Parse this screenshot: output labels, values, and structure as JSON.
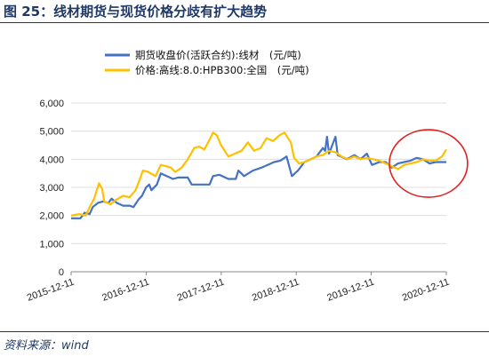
{
  "figure": {
    "title": "图 25：线材期货与现货价格分歧有扩大趋势",
    "source": "资料来源：wind"
  },
  "colors": {
    "title": "#1f3864",
    "futures_line": "#4472c4",
    "spot_line": "#ffc000",
    "highlight_circle": "#e02020"
  },
  "chart_data": {
    "type": "line",
    "title": "",
    "xlabel": "",
    "ylabel": "",
    "ylim": [
      0,
      6000
    ],
    "yticks": [
      0,
      1000,
      2000,
      3000,
      4000,
      5000,
      6000
    ],
    "ytick_labels": [
      "0",
      "1,000",
      "2,000",
      "3,000",
      "4,000",
      "5,000",
      "6,000"
    ],
    "xlim": [
      "2015-12-11",
      "2020-12-11"
    ],
    "xticks": [
      "2015-12-11",
      "2016-12-11",
      "2017-12-11",
      "2018-12-11",
      "2019-12-11",
      "2020-12-11"
    ],
    "grid": "horizontal",
    "legend": "top",
    "series": [
      {
        "name": "期货收盘价(活跃合约):线材　(元/吨)",
        "color": "#4472c4",
        "points": [
          [
            "2015-12-11",
            1900
          ],
          [
            "2016-01-25",
            1900
          ],
          [
            "2016-02-15",
            2100
          ],
          [
            "2016-03-10",
            2050
          ],
          [
            "2016-03-25",
            2300
          ],
          [
            "2016-04-20",
            2450
          ],
          [
            "2016-05-15",
            2500
          ],
          [
            "2016-06-10",
            2450
          ],
          [
            "2016-06-25",
            2600
          ],
          [
            "2016-07-20",
            2450
          ],
          [
            "2016-08-20",
            2350
          ],
          [
            "2016-09-20",
            2350
          ],
          [
            "2016-10-10",
            2300
          ],
          [
            "2016-11-01",
            2550
          ],
          [
            "2016-11-20",
            2700
          ],
          [
            "2016-12-10",
            3000
          ],
          [
            "2016-12-25",
            3100
          ],
          [
            "2017-01-05",
            2900
          ],
          [
            "2017-02-01",
            3100
          ],
          [
            "2017-02-20",
            3500
          ],
          [
            "2017-03-20",
            3400
          ],
          [
            "2017-04-20",
            3300
          ],
          [
            "2017-05-15",
            3350
          ],
          [
            "2017-07-01",
            3350
          ],
          [
            "2017-07-20",
            3100
          ],
          [
            "2017-09-01",
            3100
          ],
          [
            "2017-10-15",
            3100
          ],
          [
            "2017-11-01",
            3400
          ],
          [
            "2017-12-01",
            3450
          ],
          [
            "2018-01-15",
            3300
          ],
          [
            "2018-02-20",
            3300
          ],
          [
            "2018-03-05",
            3600
          ],
          [
            "2018-04-01",
            3400
          ],
          [
            "2018-05-15",
            3600
          ],
          [
            "2018-06-25",
            3700
          ],
          [
            "2018-07-25",
            3800
          ],
          [
            "2018-08-25",
            3900
          ],
          [
            "2018-09-25",
            3950
          ],
          [
            "2018-10-25",
            4100
          ],
          [
            "2018-11-20",
            3400
          ],
          [
            "2018-12-20",
            3600
          ],
          [
            "2019-01-20",
            3900
          ],
          [
            "2019-02-20",
            4000
          ],
          [
            "2019-03-20",
            4100
          ],
          [
            "2019-04-20",
            4400
          ],
          [
            "2019-05-01",
            4300
          ],
          [
            "2019-05-10",
            4800
          ],
          [
            "2019-05-20",
            4200
          ],
          [
            "2019-06-20",
            4800
          ],
          [
            "2019-07-01",
            4150
          ],
          [
            "2019-08-15",
            4000
          ],
          [
            "2019-09-20",
            4150
          ],
          [
            "2019-10-20",
            4000
          ],
          [
            "2019-11-20",
            4200
          ],
          [
            "2019-12-15",
            3800
          ],
          [
            "2020-01-20",
            3900
          ],
          [
            "2020-02-20",
            3900
          ],
          [
            "2020-03-20",
            3700
          ],
          [
            "2020-04-20",
            3850
          ],
          [
            "2020-05-20",
            3900
          ],
          [
            "2020-06-20",
            3950
          ],
          [
            "2020-07-20",
            4050
          ],
          [
            "2020-08-20",
            4000
          ],
          [
            "2020-09-20",
            3850
          ],
          [
            "2020-10-20",
            3900
          ],
          [
            "2020-11-20",
            3900
          ],
          [
            "2020-12-11",
            3900
          ]
        ]
      },
      {
        "name": "价格:高线:8.0:HPB300:全国　(元/吨)",
        "color": "#ffc000",
        "points": [
          [
            "2015-12-11",
            2000
          ],
          [
            "2016-01-20",
            2050
          ],
          [
            "2016-02-20",
            2000
          ],
          [
            "2016-03-10",
            2300
          ],
          [
            "2016-04-01",
            2600
          ],
          [
            "2016-04-25",
            3150
          ],
          [
            "2016-05-10",
            2950
          ],
          [
            "2016-05-20",
            2500
          ],
          [
            "2016-06-20",
            2400
          ],
          [
            "2016-07-15",
            2550
          ],
          [
            "2016-08-20",
            2700
          ],
          [
            "2016-09-20",
            2650
          ],
          [
            "2016-10-20",
            2900
          ],
          [
            "2016-11-10",
            3300
          ],
          [
            "2016-11-25",
            3600
          ],
          [
            "2016-12-20",
            3550
          ],
          [
            "2017-01-25",
            3400
          ],
          [
            "2017-02-20",
            3800
          ],
          [
            "2017-03-20",
            3750
          ],
          [
            "2017-04-10",
            3700
          ],
          [
            "2017-05-01",
            3550
          ],
          [
            "2017-06-01",
            3700
          ],
          [
            "2017-07-01",
            4000
          ],
          [
            "2017-08-01",
            4400
          ],
          [
            "2017-08-25",
            4450
          ],
          [
            "2017-09-20",
            4350
          ],
          [
            "2017-10-15",
            4700
          ],
          [
            "2017-11-01",
            4950
          ],
          [
            "2017-11-20",
            4850
          ],
          [
            "2017-12-10",
            4500
          ],
          [
            "2018-01-15",
            4100
          ],
          [
            "2018-02-15",
            4200
          ],
          [
            "2018-03-20",
            4300
          ],
          [
            "2018-04-20",
            4600
          ],
          [
            "2018-05-20",
            4300
          ],
          [
            "2018-06-20",
            4400
          ],
          [
            "2018-07-20",
            4750
          ],
          [
            "2018-08-20",
            4650
          ],
          [
            "2018-09-20",
            4850
          ],
          [
            "2018-10-15",
            4950
          ],
          [
            "2018-11-15",
            4600
          ],
          [
            "2018-12-01",
            4050
          ],
          [
            "2018-12-25",
            3850
          ],
          [
            "2019-01-20",
            3900
          ],
          [
            "2019-02-20",
            4000
          ],
          [
            "2019-03-20",
            4100
          ],
          [
            "2019-04-20",
            4150
          ],
          [
            "2019-05-20",
            4300
          ],
          [
            "2019-06-20",
            4250
          ],
          [
            "2019-07-20",
            4100
          ],
          [
            "2019-08-20",
            4000
          ],
          [
            "2019-09-20",
            4100
          ],
          [
            "2019-10-20",
            4000
          ],
          [
            "2019-11-20",
            4050
          ],
          [
            "2019-12-20",
            4000
          ],
          [
            "2020-01-20",
            3950
          ],
          [
            "2020-02-20",
            3850
          ],
          [
            "2020-03-20",
            3750
          ],
          [
            "2020-04-20",
            3650
          ],
          [
            "2020-05-20",
            3800
          ],
          [
            "2020-06-20",
            3850
          ],
          [
            "2020-07-20",
            3900
          ],
          [
            "2020-08-20",
            4000
          ],
          [
            "2020-09-20",
            3950
          ],
          [
            "2020-10-20",
            3950
          ],
          [
            "2020-11-20",
            4100
          ],
          [
            "2020-12-11",
            4350
          ]
        ]
      }
    ],
    "annotations": [
      {
        "type": "circle",
        "center": [
          "2020-09-15",
          3850
        ],
        "color": "#e02020"
      }
    ]
  }
}
